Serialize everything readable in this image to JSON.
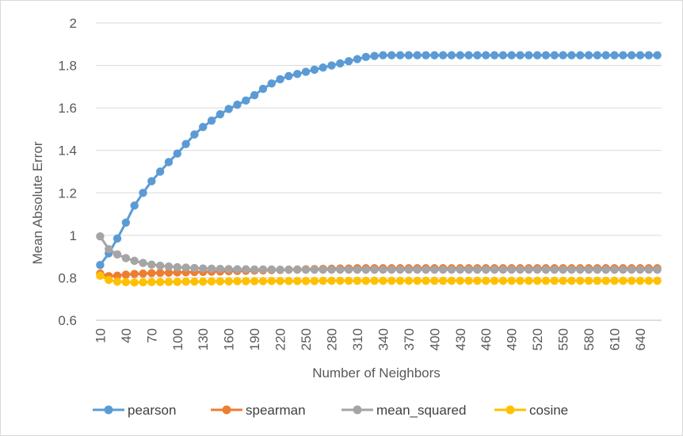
{
  "chart_data": {
    "type": "line",
    "xlabel": "Number of Neighbors",
    "ylabel": "Mean Absolute Error",
    "ylim": [
      0.6,
      2.0
    ],
    "yticks": [
      "0.6",
      "0.8",
      "1",
      "1.2",
      "1.4",
      "1.6",
      "1.8",
      "2"
    ],
    "x_tick_labels": [
      "10",
      "40",
      "70",
      "100",
      "130",
      "160",
      "190",
      "220",
      "250",
      "280",
      "310",
      "340",
      "370",
      "400",
      "430",
      "460",
      "490",
      "520",
      "550",
      "580",
      "610",
      "640"
    ],
    "x": [
      10,
      20,
      30,
      40,
      50,
      60,
      70,
      80,
      90,
      100,
      110,
      120,
      130,
      140,
      150,
      160,
      170,
      180,
      190,
      200,
      210,
      220,
      230,
      240,
      250,
      260,
      270,
      280,
      290,
      300,
      310,
      320,
      330,
      340,
      350,
      360,
      370,
      380,
      390,
      400,
      410,
      420,
      430,
      440,
      450,
      460,
      470,
      480,
      490,
      500,
      510,
      520,
      530,
      540,
      550,
      560,
      570,
      580,
      590,
      600,
      610,
      620,
      630,
      640,
      650,
      660
    ],
    "grid": true,
    "legend_position": "bottom",
    "series": [
      {
        "name": "pearson",
        "color": "#5b9bd5",
        "values": [
          0.86,
          0.915,
          0.985,
          1.06,
          1.14,
          1.2,
          1.255,
          1.3,
          1.345,
          1.385,
          1.43,
          1.475,
          1.51,
          1.54,
          1.57,
          1.595,
          1.615,
          1.635,
          1.66,
          1.69,
          1.715,
          1.735,
          1.75,
          1.76,
          1.77,
          1.78,
          1.79,
          1.8,
          1.81,
          1.82,
          1.83,
          1.84,
          1.845,
          1.848,
          1.848,
          1.848,
          1.848,
          1.848,
          1.848,
          1.848,
          1.848,
          1.848,
          1.848,
          1.848,
          1.848,
          1.848,
          1.848,
          1.848,
          1.848,
          1.848,
          1.848,
          1.848,
          1.848,
          1.848,
          1.848,
          1.848,
          1.848,
          1.848,
          1.848,
          1.848,
          1.848,
          1.848,
          1.848,
          1.848,
          1.848,
          1.848
        ]
      },
      {
        "name": "spearman",
        "color": "#ed7d31",
        "values": [
          0.82,
          0.808,
          0.81,
          0.815,
          0.818,
          0.82,
          0.822,
          0.823,
          0.824,
          0.825,
          0.826,
          0.827,
          0.828,
          0.829,
          0.83,
          0.831,
          0.832,
          0.833,
          0.834,
          0.835,
          0.836,
          0.837,
          0.838,
          0.839,
          0.84,
          0.841,
          0.842,
          0.843,
          0.844,
          0.844,
          0.845,
          0.845,
          0.845,
          0.845,
          0.845,
          0.845,
          0.845,
          0.845,
          0.845,
          0.845,
          0.845,
          0.845,
          0.845,
          0.845,
          0.845,
          0.845,
          0.845,
          0.845,
          0.845,
          0.845,
          0.845,
          0.845,
          0.845,
          0.845,
          0.845,
          0.845,
          0.845,
          0.845,
          0.845,
          0.845,
          0.845,
          0.845,
          0.845,
          0.845,
          0.845,
          0.845
        ]
      },
      {
        "name": "mean_squared",
        "color": "#a5a5a5",
        "values": [
          0.995,
          0.935,
          0.91,
          0.893,
          0.88,
          0.87,
          0.862,
          0.857,
          0.853,
          0.85,
          0.848,
          0.846,
          0.844,
          0.843,
          0.842,
          0.841,
          0.84,
          0.84,
          0.839,
          0.839,
          0.839,
          0.838,
          0.838,
          0.838,
          0.838,
          0.838,
          0.838,
          0.838,
          0.838,
          0.838,
          0.838,
          0.838,
          0.838,
          0.838,
          0.838,
          0.838,
          0.838,
          0.838,
          0.838,
          0.838,
          0.838,
          0.838,
          0.838,
          0.838,
          0.838,
          0.838,
          0.838,
          0.838,
          0.838,
          0.838,
          0.838,
          0.838,
          0.838,
          0.838,
          0.838,
          0.838,
          0.838,
          0.838,
          0.838,
          0.838,
          0.838,
          0.838,
          0.838,
          0.838,
          0.838,
          0.838
        ]
      },
      {
        "name": "cosine",
        "color": "#ffc000",
        "values": [
          0.81,
          0.79,
          0.782,
          0.78,
          0.778,
          0.779,
          0.78,
          0.78,
          0.781,
          0.781,
          0.782,
          0.782,
          0.782,
          0.783,
          0.783,
          0.783,
          0.784,
          0.784,
          0.784,
          0.784,
          0.785,
          0.785,
          0.785,
          0.785,
          0.785,
          0.785,
          0.786,
          0.786,
          0.786,
          0.786,
          0.786,
          0.786,
          0.786,
          0.786,
          0.786,
          0.786,
          0.786,
          0.786,
          0.786,
          0.786,
          0.786,
          0.786,
          0.786,
          0.786,
          0.786,
          0.786,
          0.786,
          0.786,
          0.786,
          0.786,
          0.786,
          0.786,
          0.786,
          0.786,
          0.786,
          0.786,
          0.786,
          0.786,
          0.786,
          0.786,
          0.786,
          0.786,
          0.786,
          0.786,
          0.786,
          0.786
        ]
      }
    ]
  }
}
